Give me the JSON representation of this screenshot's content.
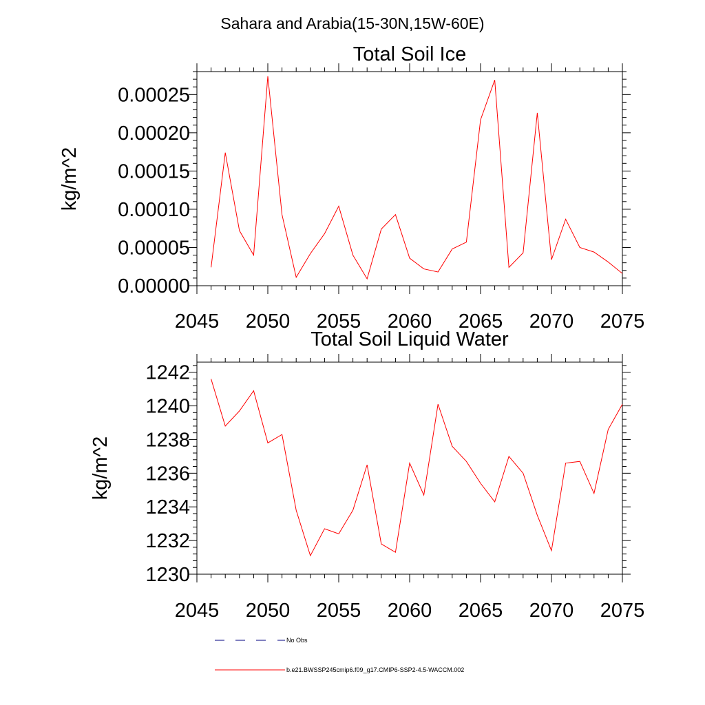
{
  "figure": {
    "suptitle": "Sahara and Arabia(15-30N,15W-60E)"
  },
  "legend": {
    "items": [
      {
        "label": "No Obs",
        "style": "dashed",
        "color": "#000080"
      },
      {
        "label": "b.e21.BWSSP245cmip6.f09_g17.CMIP6-SSP2-4.5-WACCM.002",
        "style": "solid",
        "color": "#ff0000"
      }
    ]
  },
  "chart_data": [
    {
      "type": "line",
      "title": "Total Soil Ice",
      "xlabel": "",
      "ylabel": "kg/m^2",
      "xlim": [
        2045,
        2075
      ],
      "ylim": [
        0,
        0.00028
      ],
      "xticks": [
        2045,
        2050,
        2055,
        2060,
        2065,
        2070,
        2075
      ],
      "yticks": [
        0,
        5e-05,
        0.0001,
        0.00015,
        0.0002,
        0.00025
      ],
      "ytick_labels": [
        "0.00000",
        "0.00005",
        "0.00010",
        "0.00015",
        "0.00020",
        "0.00025"
      ],
      "grid": false,
      "series": [
        {
          "color": "#ff0000",
          "x": [
            2046,
            2047,
            2048,
            2049,
            2050,
            2051,
            2052,
            2053,
            2054,
            2055,
            2056,
            2057,
            2058,
            2059,
            2060,
            2061,
            2062,
            2063,
            2064,
            2065,
            2066,
            2067,
            2068,
            2069,
            2070,
            2071,
            2072,
            2073,
            2074,
            2075
          ],
          "y": [
            2.4e-05,
            0.000174,
            7.2e-05,
            4e-05,
            0.000274,
            9.3e-05,
            1.1e-05,
            4.2e-05,
            6.8e-05,
            0.000104,
            4e-05,
            9e-06,
            7.4e-05,
            9.3e-05,
            3.6e-05,
            2.2e-05,
            1.8e-05,
            4.8e-05,
            5.7e-05,
            0.000217,
            0.000269,
            2.4e-05,
            4.3e-05,
            0.000226,
            3.4e-05,
            8.7e-05,
            5e-05,
            4.4e-05,
            3.1e-05,
            1.6e-05
          ]
        }
      ]
    },
    {
      "type": "line",
      "title": "Total Soil Liquid Water",
      "xlabel": "",
      "ylabel": "kg/m^2",
      "xlim": [
        2045,
        2075
      ],
      "ylim": [
        1230,
        1242.6
      ],
      "xticks": [
        2045,
        2050,
        2055,
        2060,
        2065,
        2070,
        2075
      ],
      "yticks": [
        1230,
        1232,
        1234,
        1236,
        1238,
        1240,
        1242
      ],
      "ytick_labels": [
        "1230",
        "1232",
        "1234",
        "1236",
        "1238",
        "1240",
        "1242"
      ],
      "grid": false,
      "series": [
        {
          "color": "#ff0000",
          "x": [
            2046,
            2047,
            2048,
            2049,
            2050,
            2051,
            2052,
            2053,
            2054,
            2055,
            2056,
            2057,
            2058,
            2059,
            2060,
            2061,
            2062,
            2063,
            2064,
            2065,
            2066,
            2067,
            2068,
            2069,
            2070,
            2071,
            2072,
            2073,
            2074,
            2075
          ],
          "y": [
            1241.6,
            1238.8,
            1239.7,
            1240.9,
            1237.8,
            1238.3,
            1233.8,
            1231.1,
            1232.7,
            1232.4,
            1233.8,
            1236.5,
            1231.8,
            1231.3,
            1236.6,
            1234.7,
            1240.1,
            1237.6,
            1236.7,
            1235.4,
            1234.3,
            1237.0,
            1236.0,
            1233.5,
            1231.4,
            1236.6,
            1236.7,
            1234.8,
            1238.6,
            1240.1
          ]
        }
      ]
    }
  ]
}
